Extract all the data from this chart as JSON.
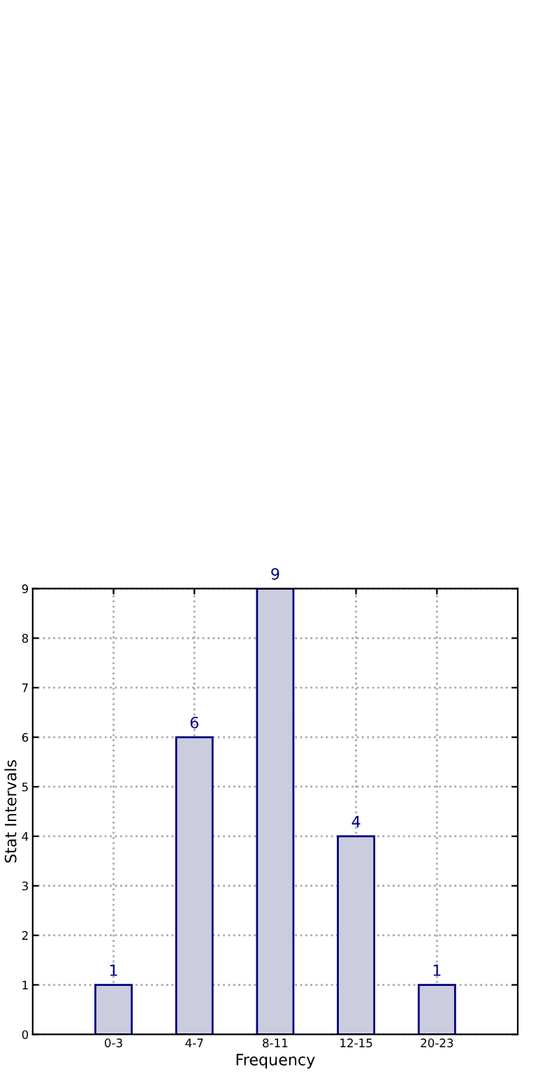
{
  "chart_data": {
    "type": "bar",
    "xlabel": "Frequency",
    "ylabel": "Stat Intervals",
    "categories": [
      "0-3",
      "4-7",
      "8-11",
      "12-15",
      "20-23"
    ],
    "values": [
      1,
      6,
      9,
      4,
      1
    ],
    "color": "#ccccdf",
    "ylim": [
      0,
      9
    ],
    "yticks": [
      0,
      1,
      2,
      3,
      4,
      5,
      6,
      7,
      8,
      9
    ],
    "grid": true,
    "data_labels": true
  }
}
